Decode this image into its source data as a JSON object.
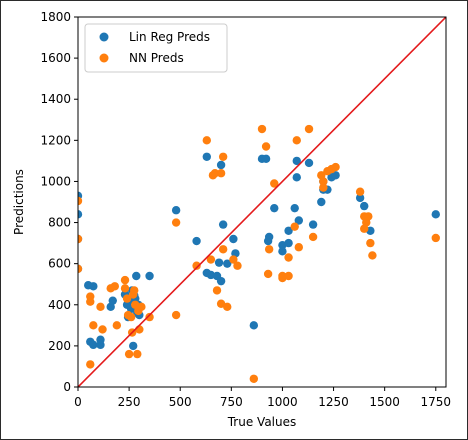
{
  "chart_data": {
    "type": "scatter",
    "xlabel": "True Values",
    "ylabel": "Predictions",
    "xlim": [
      0,
      1800
    ],
    "ylim": [
      0,
      1800
    ],
    "xticks": [
      0,
      250,
      500,
      750,
      1000,
      1250,
      1500,
      1750
    ],
    "yticks": [
      0,
      200,
      400,
      600,
      800,
      1000,
      1200,
      1400,
      1600,
      1800
    ],
    "grid": false,
    "legend_position": "top-left",
    "reference_line": {
      "from": [
        0,
        0
      ],
      "to": [
        1800,
        1800
      ],
      "color": "#e41a1c"
    },
    "series": [
      {
        "name": "Lin Reg Preds",
        "color": "#1f77b4",
        "points": [
          [
            0,
            930
          ],
          [
            0,
            840
          ],
          [
            0,
            720
          ],
          [
            0,
            575
          ],
          [
            50,
            495
          ],
          [
            60,
            220
          ],
          [
            75,
            205
          ],
          [
            75,
            490
          ],
          [
            110,
            205
          ],
          [
            110,
            230
          ],
          [
            160,
            390
          ],
          [
            170,
            420
          ],
          [
            230,
            450
          ],
          [
            240,
            400
          ],
          [
            245,
            340
          ],
          [
            250,
            420
          ],
          [
            260,
            380
          ],
          [
            265,
            470
          ],
          [
            270,
            200
          ],
          [
            275,
            445
          ],
          [
            280,
            430
          ],
          [
            285,
            540
          ],
          [
            290,
            360
          ],
          [
            295,
            400
          ],
          [
            300,
            350
          ],
          [
            350,
            540
          ],
          [
            480,
            860
          ],
          [
            580,
            710
          ],
          [
            630,
            1120
          ],
          [
            630,
            555
          ],
          [
            650,
            545
          ],
          [
            680,
            540
          ],
          [
            690,
            605
          ],
          [
            700,
            1080
          ],
          [
            700,
            515
          ],
          [
            710,
            790
          ],
          [
            730,
            600
          ],
          [
            760,
            720
          ],
          [
            770,
            650
          ],
          [
            860,
            300
          ],
          [
            900,
            1110
          ],
          [
            920,
            1110
          ],
          [
            930,
            710
          ],
          [
            935,
            730
          ],
          [
            960,
            870
          ],
          [
            1000,
            690
          ],
          [
            1000,
            660
          ],
          [
            1030,
            760
          ],
          [
            1030,
            700
          ],
          [
            1060,
            870
          ],
          [
            1070,
            1020
          ],
          [
            1070,
            1100
          ],
          [
            1080,
            810
          ],
          [
            1130,
            1090
          ],
          [
            1150,
            790
          ],
          [
            1190,
            900
          ],
          [
            1200,
            1000
          ],
          [
            1200,
            960
          ],
          [
            1220,
            960
          ],
          [
            1240,
            1020
          ],
          [
            1260,
            1030
          ],
          [
            1380,
            920
          ],
          [
            1400,
            880
          ],
          [
            1410,
            820
          ],
          [
            1430,
            760
          ],
          [
            1750,
            840
          ]
        ]
      },
      {
        "name": "NN Preds",
        "color": "#ff7f0e",
        "points": [
          [
            0,
            905
          ],
          [
            0,
            720
          ],
          [
            0,
            575
          ],
          [
            60,
            440
          ],
          [
            60,
            415
          ],
          [
            60,
            110
          ],
          [
            75,
            300
          ],
          [
            110,
            390
          ],
          [
            120,
            280
          ],
          [
            160,
            480
          ],
          [
            180,
            490
          ],
          [
            190,
            300
          ],
          [
            230,
            520
          ],
          [
            230,
            480
          ],
          [
            240,
            430
          ],
          [
            245,
            350
          ],
          [
            250,
            160
          ],
          [
            260,
            340
          ],
          [
            265,
            265
          ],
          [
            270,
            450
          ],
          [
            275,
            470
          ],
          [
            280,
            400
          ],
          [
            290,
            160
          ],
          [
            295,
            370
          ],
          [
            300,
            280
          ],
          [
            310,
            390
          ],
          [
            350,
            340
          ],
          [
            480,
            800
          ],
          [
            480,
            350
          ],
          [
            580,
            590
          ],
          [
            630,
            1200
          ],
          [
            650,
            620
          ],
          [
            660,
            1030
          ],
          [
            670,
            1040
          ],
          [
            680,
            470
          ],
          [
            700,
            1040
          ],
          [
            700,
            405
          ],
          [
            710,
            1120
          ],
          [
            710,
            670
          ],
          [
            730,
            390
          ],
          [
            760,
            620
          ],
          [
            780,
            590
          ],
          [
            860,
            40
          ],
          [
            900,
            1255
          ],
          [
            920,
            1170
          ],
          [
            930,
            550
          ],
          [
            935,
            670
          ],
          [
            960,
            990
          ],
          [
            1000,
            540
          ],
          [
            1000,
            530
          ],
          [
            1030,
            540
          ],
          [
            1030,
            630
          ],
          [
            1060,
            780
          ],
          [
            1070,
            1200
          ],
          [
            1080,
            680
          ],
          [
            1130,
            1255
          ],
          [
            1150,
            730
          ],
          [
            1190,
            1030
          ],
          [
            1200,
            1000
          ],
          [
            1200,
            970
          ],
          [
            1220,
            1050
          ],
          [
            1240,
            1060
          ],
          [
            1260,
            1070
          ],
          [
            1380,
            950
          ],
          [
            1400,
            830
          ],
          [
            1400,
            770
          ],
          [
            1410,
            800
          ],
          [
            1420,
            830
          ],
          [
            1430,
            700
          ],
          [
            1440,
            640
          ],
          [
            1750,
            725
          ]
        ]
      }
    ]
  }
}
